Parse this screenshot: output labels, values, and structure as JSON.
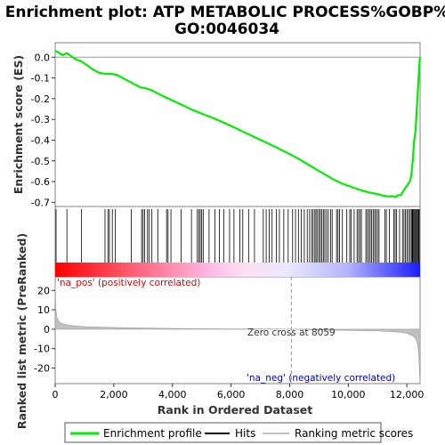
{
  "chart_data": {
    "type": "line",
    "title_line1": "Enrichment plot: ATP METABOLIC PROCESS%GOBP%",
    "title_line2": "GO:0046034",
    "es_ylabel": "Enrichment score (ES)",
    "metric_ylabel_line1": "Ranked list metric (PreRanked)",
    "xlabel": "Rank in Ordered Dataset",
    "x_ticks": [
      0,
      2000,
      4000,
      6000,
      8000,
      10000,
      12000
    ],
    "x_tick_labels": [
      "0",
      "2,000",
      "4,000",
      "6,000",
      "8,000",
      "10,000",
      "12,000"
    ],
    "es_ylim": [
      -0.72,
      0.07
    ],
    "es_ticks": [
      0.0,
      -0.1,
      -0.2,
      -0.3,
      -0.4,
      -0.5,
      -0.6,
      -0.7
    ],
    "es_tick_labels": [
      "0.0",
      "-0.1",
      "-0.2",
      "-0.3",
      "-0.4",
      "-0.5",
      "-0.6",
      "-0.7"
    ],
    "metric_ylim": [
      -28,
      27
    ],
    "metric_ticks": [
      20,
      10,
      0,
      -10,
      -20
    ],
    "metric_tick_labels": [
      "20",
      "10",
      "0",
      "-10",
      "-20"
    ],
    "x_max": 12450,
    "zero_cross": 8059,
    "zero_cross_label": "Zero cross at 8059",
    "pos_label": "'na_pos' (positively correlated)",
    "neg_label": "'na_neg' (negatively correlated)",
    "series": [
      {
        "name": "Enrichment profile",
        "color": "#00ee00",
        "x": [
          0,
          100,
          250,
          400,
          550,
          700,
          900,
          1100,
          1300,
          1500,
          1700,
          1900,
          2100,
          2300,
          2500,
          2700,
          2900,
          3100,
          3300,
          3500,
          3800,
          4100,
          4400,
          4700,
          5000,
          5300,
          5600,
          5900,
          6200,
          6500,
          6800,
          7100,
          7400,
          7700,
          8000,
          8300,
          8600,
          8900,
          9200,
          9500,
          9800,
          10100,
          10400,
          10700,
          11000,
          11200,
          11400,
          11500,
          11600,
          11700,
          11800,
          11900,
          12000,
          12100,
          12150,
          12200,
          12250,
          12300,
          12330,
          12360,
          12390,
          12420,
          12440,
          12450
        ],
        "y": [
          0.03,
          0.025,
          0.01,
          0.02,
          0.005,
          -0.01,
          -0.02,
          -0.04,
          -0.06,
          -0.075,
          -0.08,
          -0.08,
          -0.085,
          -0.1,
          -0.115,
          -0.13,
          -0.145,
          -0.15,
          -0.16,
          -0.175,
          -0.195,
          -0.215,
          -0.235,
          -0.255,
          -0.272,
          -0.288,
          -0.306,
          -0.325,
          -0.345,
          -0.365,
          -0.385,
          -0.405,
          -0.425,
          -0.446,
          -0.467,
          -0.49,
          -0.515,
          -0.54,
          -0.565,
          -0.59,
          -0.61,
          -0.625,
          -0.64,
          -0.652,
          -0.66,
          -0.668,
          -0.672,
          -0.67,
          -0.675,
          -0.665,
          -0.665,
          -0.64,
          -0.62,
          -0.6,
          -0.57,
          -0.5,
          -0.4,
          -0.35,
          -0.26,
          -0.2,
          -0.12,
          -0.05,
          -0.01,
          0.0
        ]
      },
      {
        "name": "Hits",
        "color": "#000000",
        "x": [
          30,
          400,
          900,
          1700,
          1800,
          1850,
          1950,
          2050,
          2600,
          2950,
          3000,
          3050,
          3150,
          3200,
          3300,
          3500,
          3800,
          3850,
          3950,
          4300,
          4650,
          4850,
          4900,
          4950,
          5000,
          5050,
          5250,
          5450,
          5600,
          5750,
          5950,
          6100,
          6300,
          6400,
          6600,
          6800,
          7100,
          7200,
          7300,
          7400,
          7550,
          7650,
          7800,
          7950,
          8100,
          8200,
          8300,
          8400,
          8500,
          8600,
          8680,
          8750,
          8800,
          8860,
          8900,
          8950,
          9000,
          9050,
          9100,
          9150,
          9200,
          9260,
          9320,
          9400,
          9450,
          9600,
          9650,
          9700,
          9800,
          9950,
          10050,
          10100,
          10200,
          10300,
          10350,
          10400,
          10450,
          10600,
          10650,
          10700,
          10750,
          10800,
          10850,
          10900,
          10950,
          11000,
          11050,
          11250,
          11300,
          11400,
          11550,
          11600,
          11650,
          11750,
          11850,
          11900,
          11950,
          12000,
          12050,
          12100,
          12150,
          12180,
          12200,
          12230,
          12260,
          12290,
          12320,
          12350,
          12380,
          12400,
          12420
        ]
      },
      {
        "name": "Ranking metric scores",
        "color": "#c0c0c0",
        "x": [
          0,
          20,
          60,
          150,
          300,
          600,
          1000,
          2000,
          3000,
          4000,
          5000,
          6000,
          7000,
          7500,
          8059,
          8600,
          9000,
          10000,
          11000,
          11500,
          11800,
          12000,
          12150,
          12250,
          12320,
          12370,
          12400,
          12420,
          12440,
          12450
        ],
        "y": [
          24,
          11,
          6,
          3.5,
          2.5,
          1.8,
          1.3,
          0.9,
          0.6,
          0.4,
          0.25,
          0.15,
          0.08,
          0.04,
          0.0,
          -0.2,
          -0.35,
          -0.6,
          -0.9,
          -1.2,
          -1.6,
          -2.1,
          -3.0,
          -4.0,
          -5.5,
          -8.0,
          -12,
          -18,
          -25,
          -27
        ]
      }
    ]
  },
  "legend": {
    "items": [
      {
        "label": "Enrichment profile",
        "color": "#00ee00"
      },
      {
        "label": "Hits",
        "color": "#000000"
      },
      {
        "label": "Ranking metric scores",
        "color": "#c0c0c0"
      }
    ]
  }
}
